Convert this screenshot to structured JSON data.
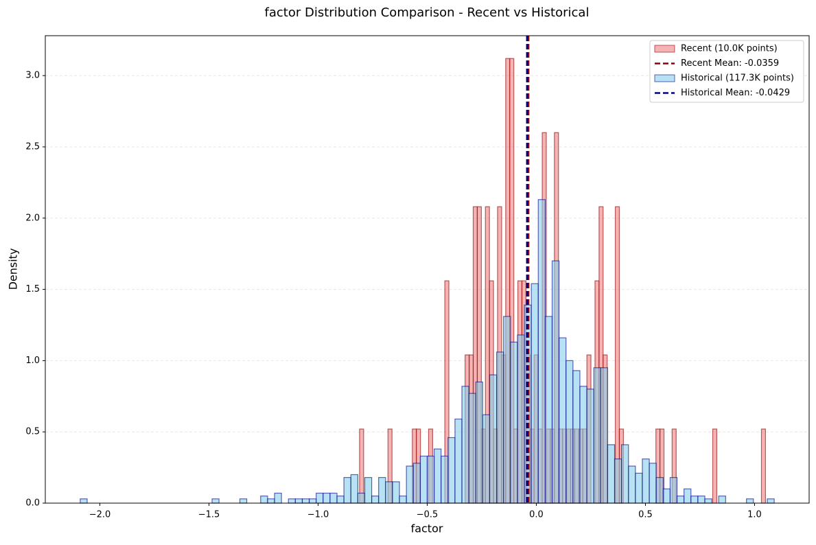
{
  "chart_data": {
    "type": "histogram",
    "title": "factor Distribution Comparison - Recent vs Historical",
    "x_label": "factor",
    "y_label": "Density",
    "xlim": [
      -2.25,
      1.25
    ],
    "ylim": [
      0,
      3.28
    ],
    "xticks": [
      {
        "value": -2,
        "label": "−2.0"
      },
      {
        "value": -1.5,
        "label": "−1.5"
      },
      {
        "value": -1,
        "label": "−1.0"
      },
      {
        "value": -0.5,
        "label": "−0.5"
      },
      {
        "value": 0,
        "label": "0.0"
      },
      {
        "value": 0.5,
        "label": "0.5"
      },
      {
        "value": 1,
        "label": "1.0"
      }
    ],
    "yticks": [
      {
        "value": 0,
        "label": "0.0"
      },
      {
        "value": 0.5,
        "label": "0.5"
      },
      {
        "value": 1,
        "label": "1.0"
      },
      {
        "value": 1.5,
        "label": "1.5"
      },
      {
        "value": 2,
        "label": "2.0"
      },
      {
        "value": 2.5,
        "label": "2.5"
      },
      {
        "value": 3,
        "label": "3.0"
      }
    ],
    "grid": true,
    "legend": "upper right",
    "series": [
      {
        "name": "Recent (10.0K points)",
        "color": "#f08080",
        "edge_color": "#8b0000",
        "bins": [
          -0.81,
          -0.7914,
          -0.7728,
          -0.7542,
          -0.7356,
          -0.717,
          -0.6984,
          -0.6798,
          -0.6612,
          -0.6426,
          -0.624,
          -0.6054,
          -0.5868,
          -0.5682,
          -0.5496,
          -0.531,
          -0.5124,
          -0.4938,
          -0.4752,
          -0.4566,
          -0.438,
          -0.4194,
          -0.4008,
          -0.3822,
          -0.3636,
          -0.345,
          -0.3264,
          -0.3078,
          -0.2892,
          -0.2706,
          -0.252,
          -0.2334,
          -0.2148,
          -0.1962,
          -0.1776,
          -0.159,
          -0.1404,
          -0.1218,
          -0.1032,
          -0.0846,
          -0.066,
          -0.0474,
          -0.0288,
          -0.0102,
          0.0084,
          0.027,
          0.0456,
          0.0642,
          0.0828,
          0.1014,
          0.12,
          0.1386,
          0.1572,
          0.1758,
          0.1944,
          0.213,
          0.2316,
          0.2502,
          0.2688,
          0.2874,
          0.306,
          0.3246,
          0.3432,
          0.3618,
          0.3804,
          0.399,
          0.4176,
          0.4362,
          0.4548,
          0.4734,
          0.492,
          0.5106,
          0.5292,
          0.5478,
          0.5664,
          0.585,
          0.6036,
          0.6222,
          0.6408,
          0.6594,
          0.678,
          0.6966,
          0.7152,
          0.7338,
          0.7524,
          0.771,
          0.7896,
          0.8082,
          0.8268,
          0.8454,
          0.864,
          0.8826,
          0.9012,
          0.9198,
          0.9384,
          0.957,
          0.9756,
          0.9942,
          1.0128,
          1.0314,
          1.05
        ],
        "values": [
          0.52,
          0,
          0,
          0,
          0,
          0,
          0,
          0.52,
          0,
          0,
          0,
          0,
          0,
          0.52,
          0.52,
          0,
          0,
          0.52,
          0,
          0,
          0,
          1.56,
          0,
          0,
          0,
          0,
          1.04,
          1.04,
          2.08,
          2.08,
          0.52,
          2.08,
          1.56,
          0.52,
          2.08,
          1.04,
          3.12,
          3.12,
          0.52,
          1.56,
          1.56,
          1.04,
          0.52,
          1.04,
          0.52,
          2.6,
          0.52,
          0.52,
          2.6,
          0.52,
          0.52,
          0.52,
          0.52,
          0.52,
          0.52,
          0.52,
          1.04,
          0,
          1.56,
          2.08,
          1.04,
          0,
          0,
          2.08,
          0.52,
          0,
          0,
          0,
          0,
          0,
          0,
          0,
          0,
          0.52,
          0.52,
          0,
          0,
          0.52,
          0,
          0,
          0,
          0,
          0,
          0,
          0,
          0,
          0,
          0.52,
          0,
          0,
          0,
          0,
          0,
          0,
          0,
          0,
          0,
          0,
          0,
          0.52
        ],
        "mean": {
          "label": "Recent Mean: -0.0359",
          "value": -0.0359,
          "color": "#8b0000"
        }
      },
      {
        "name": "Historical (117.3K points)",
        "color": "#87ceeb",
        "edge_color": "#000080",
        "bins": [
          -2.09,
          -2.0582,
          -2.0264,
          -1.9946,
          -1.9628,
          -1.931,
          -1.8992,
          -1.8674,
          -1.8356,
          -1.8038,
          -1.772,
          -1.7402,
          -1.7084,
          -1.6766,
          -1.6448,
          -1.613,
          -1.5812,
          -1.5494,
          -1.5176,
          -1.4858,
          -1.454,
          -1.4222,
          -1.3904,
          -1.3586,
          -1.3268,
          -1.295,
          -1.2632,
          -1.2314,
          -1.1996,
          -1.1678,
          -1.136,
          -1.1042,
          -1.0724,
          -1.0406,
          -1.0088,
          -0.977,
          -0.9452,
          -0.9134,
          -0.8816,
          -0.8498,
          -0.818,
          -0.7862,
          -0.7544,
          -0.7226,
          -0.6908,
          -0.659,
          -0.6272,
          -0.5954,
          -0.5636,
          -0.5318,
          -0.5,
          -0.4682,
          -0.4364,
          -0.4046,
          -0.3728,
          -0.341,
          -0.3092,
          -0.2774,
          -0.2456,
          -0.2138,
          -0.182,
          -0.1502,
          -0.1184,
          -0.0866,
          -0.0548,
          -0.023,
          0.0088,
          0.0406,
          0.0724,
          0.1042,
          0.136,
          0.1678,
          0.1996,
          0.2314,
          0.2632,
          0.295,
          0.3268,
          0.3586,
          0.3904,
          0.4222,
          0.454,
          0.4858,
          0.5176,
          0.5494,
          0.5812,
          0.613,
          0.6448,
          0.6766,
          0.7084,
          0.7402,
          0.772,
          0.8038,
          0.8356,
          0.8674,
          0.8992,
          0.931,
          0.9628,
          0.9946,
          1.0264,
          1.0582,
          1.09
        ],
        "values": [
          0.03,
          0,
          0,
          0,
          0,
          0,
          0,
          0,
          0,
          0,
          0,
          0,
          0,
          0,
          0,
          0,
          0,
          0,
          0,
          0.03,
          0,
          0,
          0,
          0.03,
          0,
          0,
          0.05,
          0.03,
          0.07,
          0,
          0.03,
          0.03,
          0.03,
          0.03,
          0.07,
          0.07,
          0.07,
          0.05,
          0.18,
          0.2,
          0.07,
          0.18,
          0.05,
          0.18,
          0.15,
          0.15,
          0.05,
          0.26,
          0.28,
          0.33,
          0.33,
          0.38,
          0.33,
          0.46,
          0.59,
          0.82,
          0.77,
          0.85,
          0.62,
          0.9,
          1.06,
          1.31,
          1.13,
          1.18,
          1.39,
          1.54,
          2.13,
          1.31,
          1.7,
          1.16,
          1.0,
          0.93,
          0.82,
          0.8,
          0.95,
          0.95,
          0.41,
          0.31,
          0.41,
          0.26,
          0.21,
          0.31,
          0.28,
          0.18,
          0.1,
          0.18,
          0.05,
          0.1,
          0.05,
          0.05,
          0.03,
          0,
          0.05,
          0,
          0,
          0,
          0.03,
          0,
          0,
          0.03
        ],
        "mean": {
          "label": "Historical Mean: -0.0429",
          "value": -0.0429,
          "color": "#000080"
        }
      }
    ]
  }
}
